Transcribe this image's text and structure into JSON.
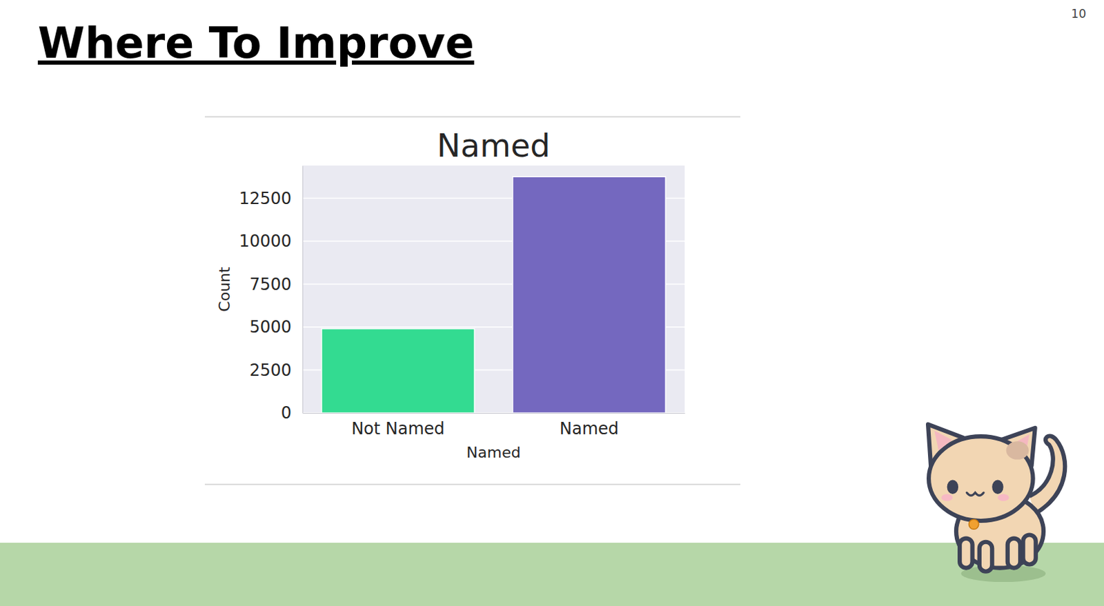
{
  "slide": {
    "title": "Where To Improve",
    "page": 10
  },
  "chart_data": {
    "type": "bar",
    "title": "Named",
    "x_label": "Named",
    "y_label": "Count",
    "categories": [
      "Not Named",
      "Named"
    ],
    "values": [
      4900,
      13750
    ],
    "colors": [
      "#33db91",
      "#7468bf"
    ],
    "ylim": [
      0,
      14400
    ],
    "yticks": [
      0,
      2500,
      5000,
      7500,
      10000,
      12500
    ],
    "grid": true
  }
}
